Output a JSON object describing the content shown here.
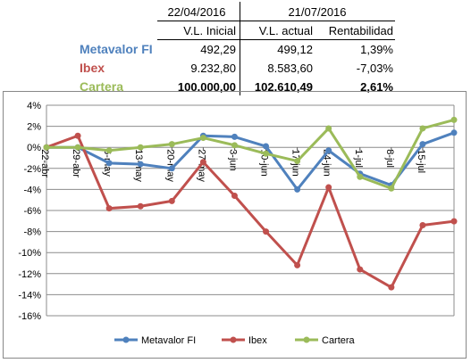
{
  "table": {
    "date1": "22/04/2016",
    "date2": "21/07/2016",
    "col1": "V.L. Inicial",
    "col2": "V.L. actual",
    "col3": "Rentabilidad",
    "rows": [
      {
        "label": "Metavalor FI",
        "v1": "492,29",
        "v2": "499,12",
        "v3": "1,39%",
        "color": "#4f81bd"
      },
      {
        "label": "Ibex",
        "v1": "9.232,80",
        "v2": "8.583,60",
        "v3": "-7,03%",
        "color": "#c0504d"
      },
      {
        "label": "Cartera",
        "v1": "100.000,00",
        "v2": "102.610,49",
        "v3": "2,61%",
        "color": "#9bbb59"
      }
    ]
  },
  "chart_data": {
    "type": "line",
    "categories": [
      "22-abr",
      "29-abr",
      "6-may",
      "13-may",
      "20-may",
      "27-may",
      "3-jun",
      "10-jun",
      "17-jun",
      "24-jun",
      "1-jul",
      "8-jul",
      "15-jul"
    ],
    "x": [
      0,
      1,
      2,
      3,
      4,
      5,
      6,
      7,
      8,
      9,
      10,
      11,
      12,
      13
    ],
    "ylim": [
      -16,
      4
    ],
    "yticks": [
      4,
      2,
      0,
      -2,
      -4,
      -6,
      -8,
      -10,
      -12,
      -14,
      -16
    ],
    "ytick_labels": [
      "4%",
      "2%",
      "0%",
      "-2%",
      "-4%",
      "-6%",
      "-8%",
      "-10%",
      "-12%",
      "-14%",
      "-16%"
    ],
    "grid": true,
    "legend": "bottom",
    "series": [
      {
        "name": "Metavalor FI",
        "color": "#4f81bd",
        "values": [
          0.0,
          0.0,
          -1.5,
          -1.6,
          -2.0,
          1.1,
          1.0,
          0.1,
          -4.0,
          -0.3,
          -2.5,
          -3.6,
          0.3,
          1.39
        ]
      },
      {
        "name": "Ibex",
        "color": "#c0504d",
        "values": [
          0.0,
          1.1,
          -5.8,
          -5.6,
          -5.1,
          -1.4,
          -4.6,
          -8.0,
          -11.2,
          -3.8,
          -11.6,
          -13.3,
          -7.4,
          -7.03
        ]
      },
      {
        "name": "Cartera",
        "color": "#9bbb59",
        "values": [
          0.0,
          0.0,
          -0.3,
          0.0,
          0.3,
          0.9,
          0.2,
          -0.6,
          -1.3,
          1.8,
          -2.8,
          -3.9,
          1.8,
          2.61
        ]
      }
    ]
  }
}
